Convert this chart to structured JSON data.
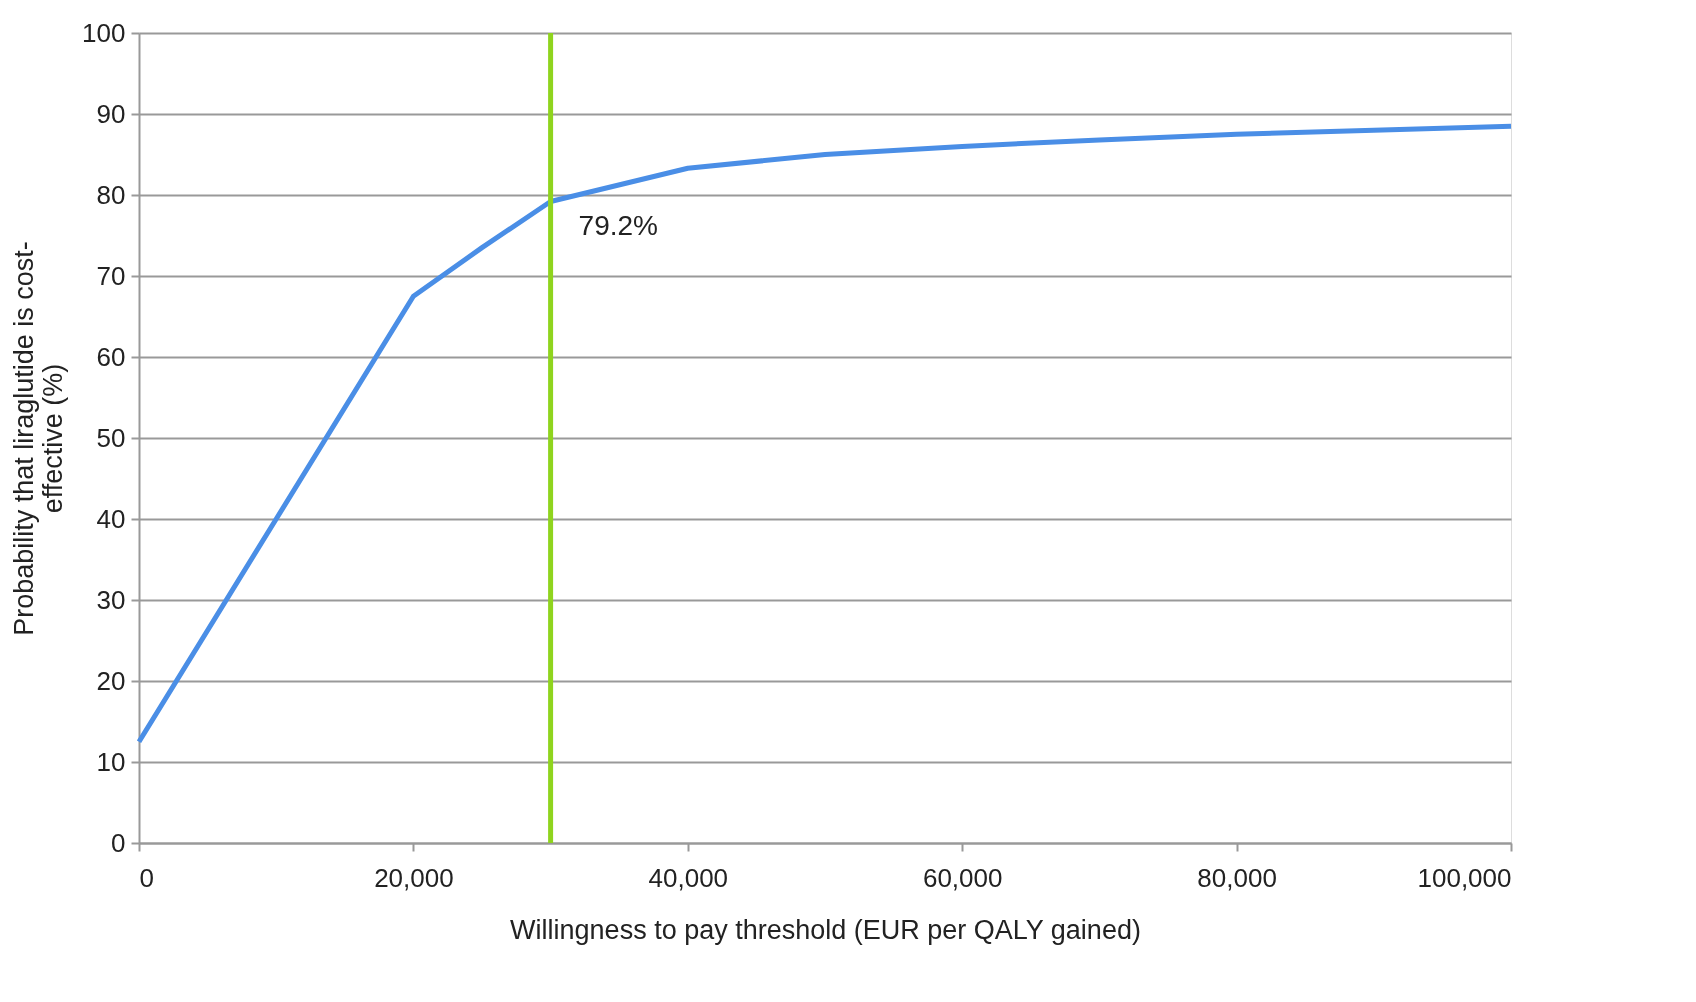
{
  "chart_data": {
    "type": "line",
    "xlabel": "Willingness to pay threshold (EUR per QALY gained)",
    "ylabel": "Probability that liraglutide is cost-\neffective (%)",
    "x": [
      0,
      10000,
      20000,
      25000,
      30000,
      40000,
      50000,
      60000,
      70000,
      80000,
      90000,
      100000
    ],
    "series": [
      {
        "color": "#4a8ee6",
        "values": [
          12.5,
          40,
          67.5,
          73.5,
          79.2,
          83.3,
          85,
          86,
          86.8,
          87.5,
          88,
          88.5
        ]
      }
    ],
    "xlim": [
      0,
      100000
    ],
    "xticks": [
      {
        "value": 0,
        "label": "0"
      },
      {
        "value": 20000,
        "label": "20,000"
      },
      {
        "value": 40000,
        "label": "40,000"
      },
      {
        "value": 60000,
        "label": "60,000"
      },
      {
        "value": 80000,
        "label": "80,000"
      },
      {
        "value": 100000,
        "label": "100,000"
      }
    ],
    "ylim": [
      0,
      100
    ],
    "yticks": [
      0,
      10,
      20,
      30,
      40,
      50,
      60,
      70,
      80,
      90,
      100
    ],
    "ref_lines": [
      {
        "axis": "x",
        "value": 30000,
        "color": "#8fd41e"
      }
    ],
    "annotations": [
      {
        "text": "79.2%",
        "x": 30000,
        "y": 79.2
      }
    ],
    "grid": "y",
    "marker": "none",
    "line_style": "solid"
  }
}
